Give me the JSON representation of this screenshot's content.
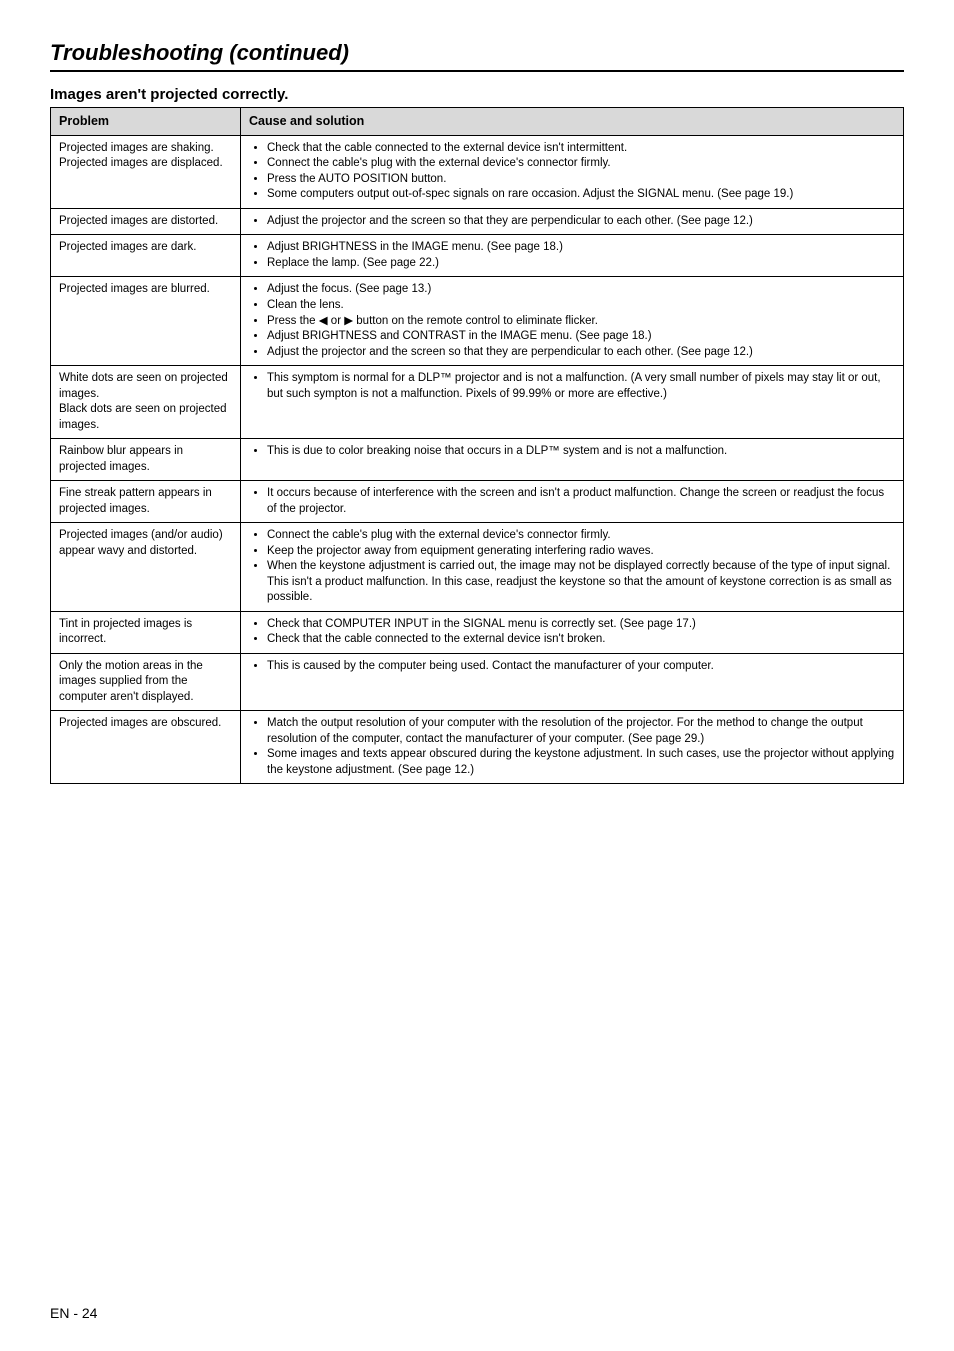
{
  "page": {
    "title": "Troubleshooting (continued)",
    "section": "Images aren't projected correctly.",
    "footer": "EN - 24",
    "headers": {
      "problem": "Problem",
      "cause": "Cause and solution"
    },
    "rows": [
      {
        "problem": "Projected images are shaking.\nProjected images are displaced.",
        "causes": [
          "Check that the cable connected to the external device isn't intermittent.",
          "Connect the cable's plug with the external device's connector firmly.",
          "Press the AUTO POSITION button.",
          "Some computers output out-of-spec signals on rare occasion. Adjust the SIGNAL menu. (See page 19.)"
        ]
      },
      {
        "problem": "Projected images are distorted.",
        "causes": [
          "Adjust the projector and the screen so that they are perpendicular to each other. (See page 12.)"
        ]
      },
      {
        "problem": "Projected images are dark.",
        "causes": [
          "Adjust BRIGHTNESS in the IMAGE menu. (See page 18.)",
          "Replace the lamp. (See page 22.)"
        ]
      },
      {
        "problem": "Projected images are blurred.",
        "causes": [
          "Adjust the focus. (See page 13.)",
          "Clean the lens.",
          "Press the ◀ or ▶ button on the remote control to eliminate flicker.",
          "Adjust BRIGHTNESS and CONTRAST in the IMAGE menu. (See page 18.)",
          "Adjust the projector and the screen so that they are perpendicular to each other. (See page 12.)"
        ]
      },
      {
        "problem": "White dots are seen on projected images.\nBlack dots are seen on projected images.",
        "causes": [
          "This symptom is normal for a DLP™ projector and is not a malfunction. (A very small number of pixels may stay lit or out, but such sympton is not a malfunction. Pixels of 99.99% or more are effective.)"
        ]
      },
      {
        "problem": "Rainbow blur appears in projected images.",
        "causes": [
          "This is due to color breaking noise that occurs in a DLP™ system and is not a malfunction."
        ]
      },
      {
        "problem": "Fine streak pattern appears in projected images.",
        "causes": [
          "It occurs because of interference with the screen and isn't a product malfunction. Change the screen or readjust the focus of the projector."
        ]
      },
      {
        "problem": "Projected images (and/or audio) appear wavy and distorted.",
        "causes": [
          "Connect the cable's plug with the external device's connector firmly.",
          "Keep the projector away from equipment generating interfering radio waves.",
          "When the keystone adjustment is carried out, the image may not be displayed correctly because of the type of input signal. This isn't a product malfunction. In this case, readjust the keystone so that the amount of keystone correction is as small as possible."
        ]
      },
      {
        "problem": "Tint in projected images is incorrect.",
        "causes": [
          "Check that COMPUTER INPUT in the SIGNAL menu is correctly set. (See page 17.)",
          "Check that the cable connected to the external device isn't broken."
        ]
      },
      {
        "problem": "Only the motion areas in the images supplied from the computer aren't displayed.",
        "causes": [
          "This is caused by the computer being used. Contact the manufacturer of your computer."
        ]
      },
      {
        "problem": "Projected images are obscured.",
        "causes": [
          "Match the output resolution of your computer with the resolution of the projector.  For the method to change the output resolution of the computer, contact the manufacturer of your computer. (See page 29.)",
          "Some images and texts appear obscured during the keystone adjustment. In such cases, use the projector without applying the keystone adjustment. (See page 12.)"
        ]
      }
    ]
  }
}
